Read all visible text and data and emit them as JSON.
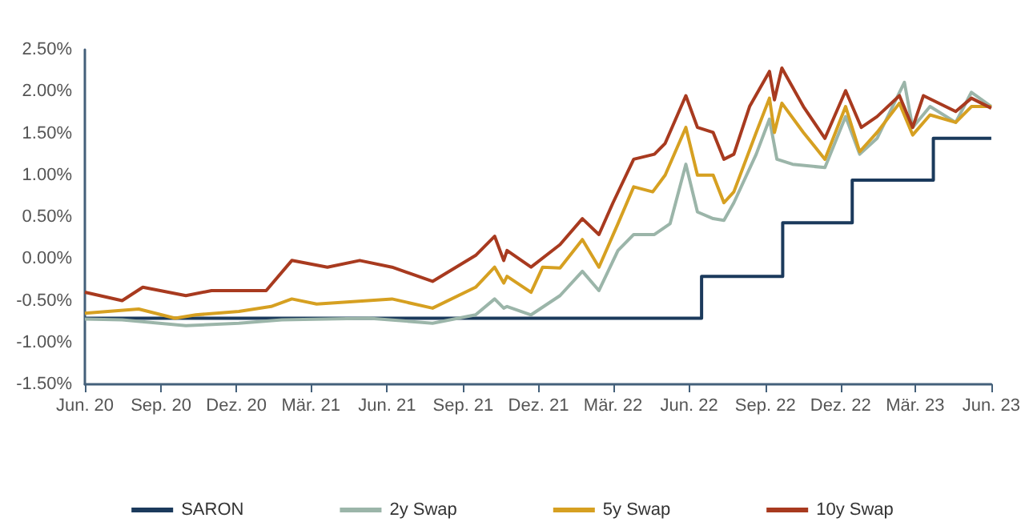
{
  "chart_data": {
    "type": "line",
    "xlim": [
      "2020-06-01",
      "2023-06-01"
    ],
    "xticks": [
      {
        "value": "2020-06-01",
        "label": "Jun. 20"
      },
      {
        "value": "2020-09-01",
        "label": "Sep. 20"
      },
      {
        "value": "2020-12-01",
        "label": "Dez. 20"
      },
      {
        "value": "2021-03-01",
        "label": "Mär. 21"
      },
      {
        "value": "2021-06-01",
        "label": "Jun. 21"
      },
      {
        "value": "2021-09-01",
        "label": "Sep. 21"
      },
      {
        "value": "2021-12-01",
        "label": "Dez. 21"
      },
      {
        "value": "2022-03-01",
        "label": "Mär. 22"
      },
      {
        "value": "2022-06-01",
        "label": "Jun. 22"
      },
      {
        "value": "2022-09-01",
        "label": "Sep. 22"
      },
      {
        "value": "2022-12-01",
        "label": "Dez. 22"
      },
      {
        "value": "2023-03-01",
        "label": "Mär. 23"
      },
      {
        "value": "2023-06-01",
        "label": "Jun. 23"
      }
    ],
    "ylim": [
      -1.5,
      2.5
    ],
    "yticks": [
      {
        "value": -1.5,
        "label": "-1.50%"
      },
      {
        "value": -1,
        "label": "-1.00%"
      },
      {
        "value": -0.5,
        "label": "-0.50%"
      },
      {
        "value": 0,
        "label": "0.00%"
      },
      {
        "value": 0.5,
        "label": "0.50%"
      },
      {
        "value": 1,
        "label": "1.00%"
      },
      {
        "value": 1.5,
        "label": "1.50%"
      },
      {
        "value": 2,
        "label": "2.00%"
      },
      {
        "value": 2.5,
        "label": "2.50%"
      }
    ],
    "grid": false,
    "legend": "bottom",
    "marker": "none",
    "line_style": "solid",
    "series": [
      {
        "name": "SARON",
        "type": "step",
        "color": "#1b3a5c",
        "x": [
          "2020-06-01",
          "2022-06-16",
          "2022-09-22",
          "2022-12-15",
          "2023-03-23",
          "2023-06-01"
        ],
        "values": [
          -0.71,
          -0.21,
          0.43,
          0.94,
          1.44,
          1.44
        ]
      },
      {
        "name": "2y Swap",
        "color": "#9bb5a9",
        "x": [
          "2020-06-01",
          "2020-07-16",
          "2020-10-01",
          "2020-12-04",
          "2021-01-25",
          "2021-05-10",
          "2021-07-26",
          "2021-09-16",
          "2021-10-09",
          "2021-10-20",
          "2021-10-24",
          "2021-11-22",
          "2021-12-27",
          "2022-01-23",
          "2022-02-12",
          "2022-03-07",
          "2022-03-26",
          "2022-04-20",
          "2022-05-09",
          "2022-05-28",
          "2022-06-11",
          "2022-06-30",
          "2022-07-13",
          "2022-07-25",
          "2022-08-21",
          "2022-09-06",
          "2022-09-15",
          "2022-10-04",
          "2022-11-12",
          "2022-12-07",
          "2022-12-24",
          "2023-01-14",
          "2023-02-16",
          "2023-02-26",
          "2023-03-19",
          "2023-04-19",
          "2023-05-08",
          "2023-06-01"
        ],
        "values": [
          -0.72,
          -0.73,
          -0.8,
          -0.77,
          -0.73,
          -0.71,
          -0.77,
          -0.67,
          -0.48,
          -0.59,
          -0.57,
          -0.67,
          -0.44,
          -0.15,
          -0.38,
          0.1,
          0.29,
          0.29,
          0.42,
          1.13,
          0.56,
          0.48,
          0.46,
          0.67,
          1.25,
          1.67,
          1.19,
          1.13,
          1.09,
          1.7,
          1.25,
          1.44,
          2.11,
          1.57,
          1.82,
          1.63,
          1.99,
          1.82
        ]
      },
      {
        "name": "5y Swap",
        "color": "#d6a021",
        "x": [
          "2020-06-01",
          "2020-08-05",
          "2020-09-18",
          "2020-10-13",
          "2020-12-04",
          "2021-01-12",
          "2021-02-06",
          "2021-03-08",
          "2021-06-07",
          "2021-07-26",
          "2021-09-16",
          "2021-10-09",
          "2021-10-20",
          "2021-10-24",
          "2021-11-22",
          "2021-12-06",
          "2021-12-27",
          "2022-01-23",
          "2022-02-12",
          "2022-03-07",
          "2022-03-26",
          "2022-04-18",
          "2022-05-03",
          "2022-05-28",
          "2022-06-11",
          "2022-06-30",
          "2022-07-13",
          "2022-07-25",
          "2022-08-21",
          "2022-09-06",
          "2022-09-12",
          "2022-09-21",
          "2022-10-17",
          "2022-11-12",
          "2022-12-07",
          "2022-12-24",
          "2023-01-14",
          "2023-02-10",
          "2023-02-26",
          "2023-03-19",
          "2023-04-19",
          "2023-05-08",
          "2023-06-01"
        ],
        "values": [
          -0.65,
          -0.6,
          -0.71,
          -0.67,
          -0.63,
          -0.57,
          -0.48,
          -0.54,
          -0.48,
          -0.59,
          -0.34,
          -0.1,
          -0.29,
          -0.21,
          -0.4,
          -0.1,
          -0.11,
          0.23,
          -0.1,
          0.42,
          0.86,
          0.8,
          1.0,
          1.57,
          1.0,
          1.0,
          0.67,
          0.8,
          1.51,
          1.92,
          1.51,
          1.86,
          1.51,
          1.19,
          1.82,
          1.28,
          1.51,
          1.86,
          1.48,
          1.72,
          1.63,
          1.82,
          1.82
        ]
      },
      {
        "name": "10y Swap",
        "color": "#a83a1f",
        "x": [
          "2020-06-01",
          "2020-07-16",
          "2020-08-10",
          "2020-10-01",
          "2020-11-01",
          "2021-01-06",
          "2021-02-06",
          "2021-03-21",
          "2021-04-29",
          "2021-06-07",
          "2021-07-26",
          "2021-09-16",
          "2021-10-09",
          "2021-10-20",
          "2021-10-24",
          "2021-11-22",
          "2021-12-27",
          "2022-01-23",
          "2022-02-12",
          "2022-03-01",
          "2022-03-26",
          "2022-04-20",
          "2022-05-03",
          "2022-05-28",
          "2022-06-11",
          "2022-06-30",
          "2022-07-13",
          "2022-07-25",
          "2022-08-13",
          "2022-09-06",
          "2022-09-12",
          "2022-09-21",
          "2022-10-17",
          "2022-11-12",
          "2022-12-07",
          "2022-12-26",
          "2023-01-14",
          "2023-02-10",
          "2023-02-26",
          "2023-03-11",
          "2023-04-19",
          "2023-05-08",
          "2023-06-01"
        ],
        "values": [
          -0.4,
          -0.5,
          -0.34,
          -0.44,
          -0.38,
          -0.38,
          -0.02,
          -0.1,
          -0.02,
          -0.1,
          -0.27,
          0.04,
          0.27,
          -0.02,
          0.1,
          -0.1,
          0.17,
          0.48,
          0.29,
          0.67,
          1.19,
          1.25,
          1.38,
          1.95,
          1.57,
          1.51,
          1.19,
          1.25,
          1.82,
          2.24,
          1.9,
          2.28,
          1.82,
          1.44,
          2.01,
          1.57,
          1.7,
          1.95,
          1.57,
          1.95,
          1.76,
          1.92,
          1.8
        ]
      }
    ]
  }
}
